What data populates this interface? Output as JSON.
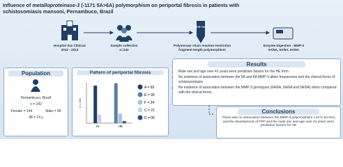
{
  "header": {
    "title": [
      "Influence of ",
      "metalloproteinase-3",
      " (-1171 5A>6A) polymorphism on periportal fibrosis in patients with schistosomiasis mansoni, Pernambuco, Brazil"
    ]
  },
  "flow": [
    {
      "label": "Hospital das Clínicas",
      "sub": "2012 - 2013"
    },
    {
      "label": "Sample collection",
      "sub": "n=242"
    },
    {
      "label": "Polymerase chain reaction-restriction fragment length polymorphism",
      "icon": "PCR Test"
    },
    {
      "label": "Enzyme Digestion - MMP-3",
      "sub": "5A/5A, 5A/6A, 6A/6A"
    }
  ],
  "population": {
    "title": "Population",
    "place": "Pernambuco, Brazil",
    "n": "n = 242",
    "female": "Female = 144",
    "male": "Male = 98",
    "age": "48 ± 14 y"
  },
  "chart_data": {
    "type": "bar",
    "title": "Pattern of periportal fibrosis",
    "ylabel": "n = 242",
    "ylim": [
      0,
      100
    ],
    "groups": [
      "HI",
      "HE"
    ],
    "series": [
      {
        "group": "HI",
        "value": 93,
        "value_label": "A = 93",
        "color": "#1f3f66"
      },
      {
        "group": "HE",
        "value": 99,
        "value_label": "E = 99",
        "color": "#5b7fa6"
      },
      {
        "group": "HE",
        "value": 24,
        "value_label": "F = 24",
        "color": "#9ec3e6"
      },
      {
        "group": "HI",
        "value": 21,
        "value_label": "C = 21",
        "color": "#c5d3e3"
      },
      {
        "group": "HE",
        "value": 5,
        "value_label": "D = 05",
        "color": "#2b4e7e"
      }
    ]
  },
  "results": {
    "title": "Results",
    "items": [
      "Male sex and age over 41 years were predictive factors for the HE form",
      "No evidence of association between the 5A and 6A MMP-3 allele frequencies and the clinical forms of schistosomiasis",
      "No evidence of association between the MMP-3 genotypes (6A/6A, 5A/6A and 5A/5A) when compared with the clinical forms."
    ]
  },
  "conclusions": {
    "title": "Conclusions",
    "text": "There was no association between the MMP-3 polymorphism (-1171 5A>6A) and the development of FPP and the male sex and age over 41 years were predictive factors for HE"
  }
}
